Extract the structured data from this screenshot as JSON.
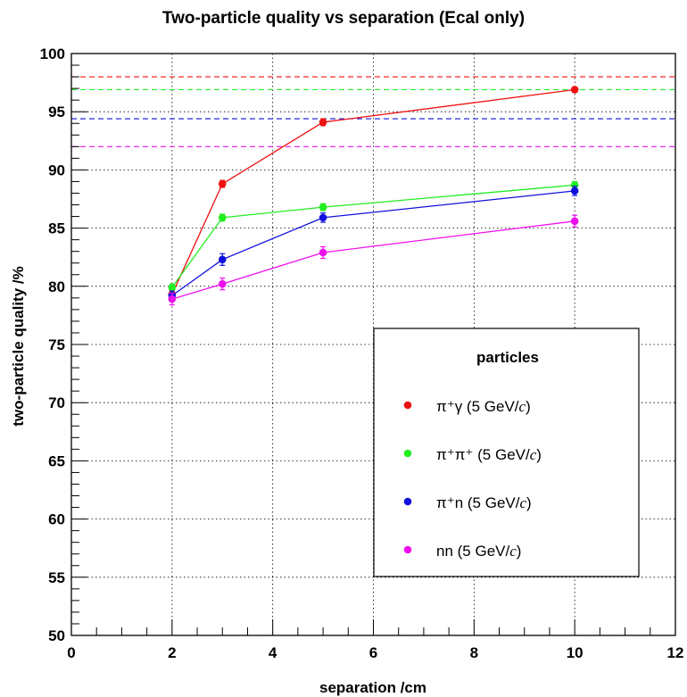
{
  "chart_data": {
    "type": "line",
    "title": "Two-particle quality vs separation (Ecal only)",
    "xlabel": "separation /cm",
    "ylabel": "two-particle quality /%",
    "xlim": [
      0,
      12
    ],
    "ylim": [
      50,
      100
    ],
    "x_ticks": [
      0,
      2,
      4,
      6,
      8,
      10,
      12
    ],
    "y_ticks": [
      50,
      55,
      60,
      65,
      70,
      75,
      80,
      85,
      90,
      95,
      100
    ],
    "grid": true,
    "legend": {
      "header": "particles",
      "placement": "lower-right"
    },
    "x": [
      2,
      3,
      5,
      10
    ],
    "series": [
      {
        "name": "π⁺γ (5 GeV/c)",
        "name_text": "π⁺γ (5 GeV/",
        "name_unit": "c",
        "name_close": ")",
        "color": "#ee1111",
        "values": [
          79.3,
          88.8,
          94.1,
          96.9
        ],
        "errors": [
          0.3,
          0.3,
          0.3,
          0.2
        ],
        "reference": 98.0
      },
      {
        "name": "π⁺π⁺ (5 GeV/c)",
        "name_text": "π⁺π⁺ (5 GeV/",
        "name_unit": "c",
        "name_close": ")",
        "color": "#22ee22",
        "values": [
          79.9,
          85.9,
          86.8,
          88.7
        ],
        "errors": [
          0.3,
          0.3,
          0.3,
          0.3
        ],
        "reference": 96.9
      },
      {
        "name": "π⁺n (5 GeV/c)",
        "name_text": "π⁺n (5 GeV/",
        "name_unit": "c",
        "name_close": ")",
        "color": "#1111dd",
        "values": [
          79.2,
          82.3,
          85.9,
          88.2
        ],
        "errors": [
          0.4,
          0.5,
          0.4,
          0.4
        ],
        "reference": 94.4
      },
      {
        "name": "nn (5 GeV/c)",
        "name_text": "nn (5 GeV/",
        "name_unit": "c",
        "name_close": ")",
        "color": "#ee11ee",
        "values": [
          78.9,
          80.2,
          82.9,
          85.6
        ],
        "errors": [
          0.5,
          0.5,
          0.5,
          0.5
        ],
        "reference": 92.0
      }
    ]
  }
}
